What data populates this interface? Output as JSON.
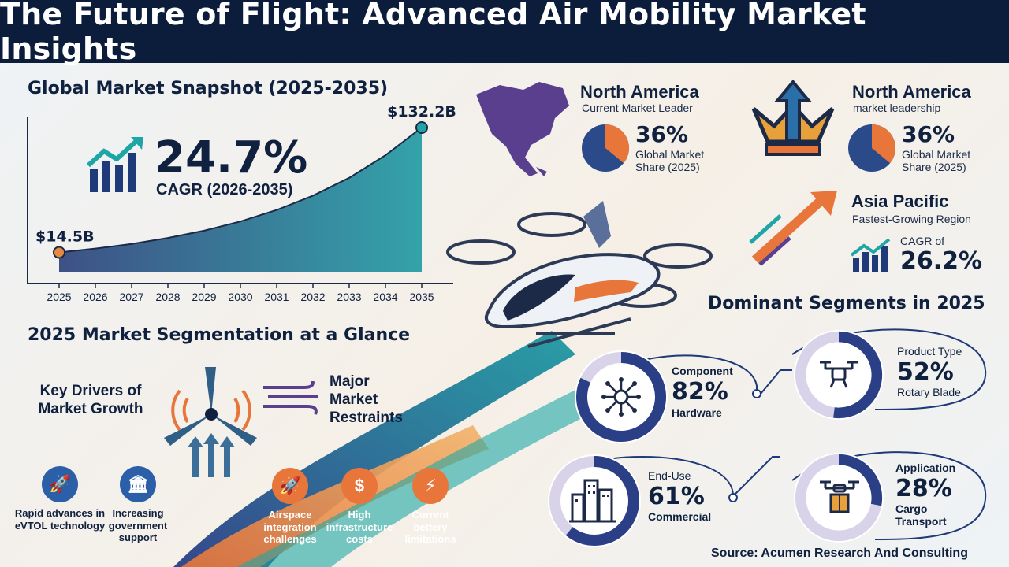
{
  "header": {
    "title": "The Future of Flight: Advanced Air Mobility Market Insights"
  },
  "snapshot": {
    "title": "Global Market Snapshot (2025-2035)",
    "cagr_value": "24.7%",
    "cagr_label": "CAGR (2026-2035)"
  },
  "chart_data": {
    "type": "area",
    "x": [
      "2025",
      "2026",
      "2027",
      "2028",
      "2029",
      "2030",
      "2031",
      "2032",
      "2033",
      "2034",
      "2035"
    ],
    "values": [
      14.5,
      18.1,
      22.5,
      28.1,
      35.0,
      43.7,
      54.5,
      68.0,
      84.8,
      106.1,
      132.2
    ],
    "start_label": "$14.5B",
    "end_label": "$132.2B",
    "colors": {
      "start": "#2a3f7a",
      "end": "#1e9aa2",
      "start_dot": "#e58a3f",
      "end_dot": "#1ea6a6"
    }
  },
  "segmentation": {
    "title": "2025 Market Segmentation at a Glance",
    "drivers_title": "Key Drivers of Market Growth",
    "restraints_title": "Major Market Restraints",
    "drivers": [
      {
        "label": "Rapid advances in eVTOL technology",
        "icon": "rocket-icon",
        "glyph": "🚀"
      },
      {
        "label": "Increasing government support",
        "icon": "government-building-icon",
        "glyph": "🏛"
      }
    ],
    "restraints": [
      {
        "label": "Airspace integration challenges",
        "icon": "rocket-icon",
        "glyph": "🚀"
      },
      {
        "label": "High infrastructure costs",
        "icon": "money-bag-icon",
        "glyph": "$"
      },
      {
        "label": "Current bettery limitations",
        "icon": "battery-icon",
        "glyph": "⚡"
      }
    ]
  },
  "north_america_1": {
    "title": "North America",
    "subtitle": "Current Market Leader",
    "pct": "36%",
    "share_label": "Global Market Share (2025)",
    "share": 36
  },
  "north_america_2": {
    "title": "North America",
    "subtitle": "market leadership",
    "pct": "36%",
    "share_label": "Global Market Share (2025)",
    "share": 36
  },
  "asia_pacific": {
    "title": "Asia Pacific",
    "subtitle": "Fastest-Growing Region",
    "cagr_label": "CAGR of",
    "cagr_value": "26.2%"
  },
  "dominant": {
    "title": "Dominant Segments in 2025",
    "segments": [
      {
        "key": "component",
        "label": "Component",
        "pct": "82%",
        "value": 82,
        "sub": "Hardware",
        "icon": "network-nodes-icon"
      },
      {
        "key": "product",
        "label": "Product Type",
        "pct": "52%",
        "value": 52,
        "sub": "Rotary Blade",
        "icon": "drone-icon"
      },
      {
        "key": "enduse",
        "label": "End-Use",
        "pct": "61%",
        "value": 61,
        "sub": "Commercial",
        "icon": "buildings-icon"
      },
      {
        "key": "application",
        "label": "Application",
        "pct": "28%",
        "value": 28,
        "sub": "Cargo Transport",
        "icon": "cargo-drone-icon"
      }
    ]
  },
  "source": "Source: Acumen Research And Consulting",
  "colors": {
    "navy": "#0c1d3b",
    "teal": "#1e9aa2",
    "orange": "#e8763a",
    "purple": "#5a3f8f",
    "pie_bg": "#2b4a8a"
  }
}
